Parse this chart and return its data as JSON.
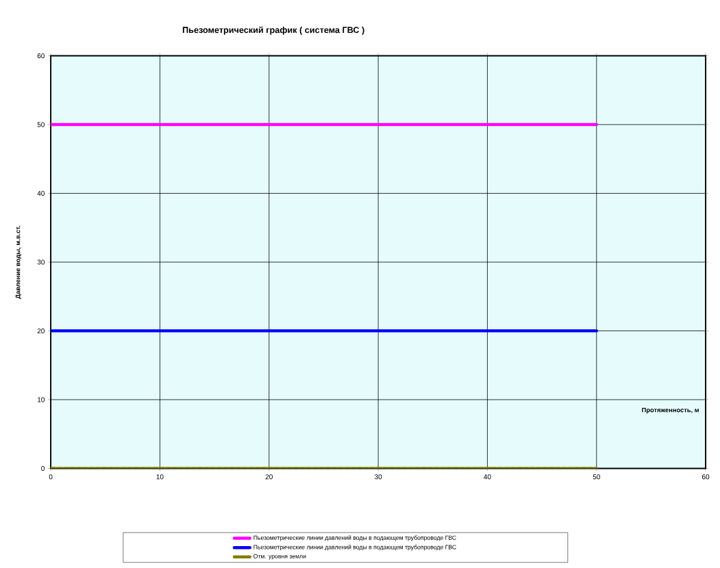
{
  "chart_data": {
    "type": "line",
    "title": "Пьезометрический график ( система ГВС )",
    "xlabel": "Протяженность, м",
    "ylabel": "Давление воды, м.в.ст.",
    "x": [
      0,
      50
    ],
    "series": [
      {
        "name": "Пьезометрические линии давлений воды в подающем трубопроводе ГВС",
        "color": "#ff00ff",
        "values": [
          50,
          50
        ]
      },
      {
        "name": "Пьезометрические линии давлений воды в подающем трубопроводе ГВС",
        "color": "#0000ff",
        "values": [
          20,
          20
        ]
      },
      {
        "name": "Отм. уровня земли",
        "color": "#808000",
        "line_style": "dashed",
        "values": [
          0,
          0
        ]
      }
    ],
    "xlim": [
      0,
      60
    ],
    "ylim": [
      0,
      60
    ],
    "xticks": [
      0,
      10,
      20,
      30,
      40,
      50,
      60
    ],
    "yticks": [
      0,
      10,
      20,
      30,
      40,
      50,
      60
    ],
    "grid": true,
    "legend": "bottom",
    "marker": "none"
  }
}
